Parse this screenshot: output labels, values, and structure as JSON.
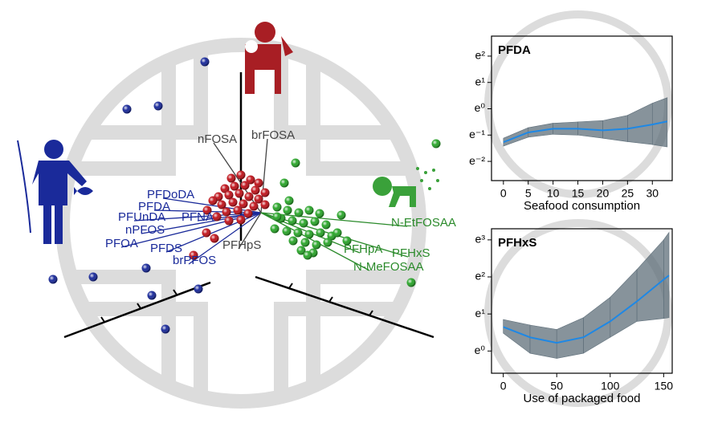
{
  "chart_data": [
    {
      "type": "scatter",
      "xlim": [
        0,
        560
      ],
      "ylim": [
        510,
        0
      ],
      "series": [
        {
          "name": null,
          "color": "#1a2a9a",
          "x": [
            255,
            158,
            197,
            66,
            116,
            189,
            247,
            206,
            182
          ],
          "y": [
            77,
            136,
            132,
            348,
            345,
            368,
            360,
            410,
            334
          ]
        },
        {
          "name": null,
          "color": "#c0141c",
          "x": [
            288,
            300,
            312,
            322,
            280,
            292,
            305,
            318,
            330,
            272,
            285,
            298,
            310,
            322,
            276,
            290,
            303,
            316,
            330,
            282,
            296,
            309,
            270,
            258,
            285,
            300,
            257,
            241,
            267,
            265
          ],
          "y": [
            222,
            218,
            224,
            228,
            235,
            232,
            231,
            237,
            240,
            245,
            243,
            241,
            245,
            248,
            255,
            252,
            254,
            257,
            255,
            264,
            262,
            266,
            270,
            262,
            275,
            274,
            290,
            318,
            297,
            250
          ]
        },
        {
          "name": null,
          "color": "#2aa52a",
          "x": [
            543,
            368,
            354,
            345,
            358,
            372,
            385,
            398,
            350,
            364,
            378,
            392,
            406,
            342,
            357,
            371,
            385,
            399,
            413,
            365,
            380,
            394,
            408,
            375,
            390,
            383,
            425,
            420,
            432,
            512,
            345,
            360
          ],
          "y": [
            179,
            203,
            228,
            258,
            262,
            265,
            262,
            266,
            272,
            275,
            278,
            276,
            280,
            285,
            288,
            290,
            292,
            290,
            294,
            300,
            302,
            305,
            302,
            312,
            315,
            318,
            268,
            290,
            300,
            352,
            270,
            250
          ]
        }
      ],
      "annotations": [
        {
          "text": "PFDoDA",
          "color": "#1a2a9a",
          "x": 183,
          "y": 243
        },
        {
          "text": "PFDA",
          "color": "#1a2a9a",
          "x": 172,
          "y": 258
        },
        {
          "text": "PFUnDA",
          "color": "#1a2a9a",
          "x": 147,
          "y": 271
        },
        {
          "text": "PFNA",
          "color": "#1a2a9a",
          "x": 226,
          "y": 271
        },
        {
          "text": "nPFOS",
          "color": "#1a2a9a",
          "x": 156,
          "y": 287
        },
        {
          "text": "PFOA",
          "color": "#1a2a9a",
          "x": 131,
          "y": 304
        },
        {
          "text": "PFDS",
          "color": "#1a2a9a",
          "x": 187,
          "y": 310
        },
        {
          "text": "brPFOS",
          "color": "#1a2a9a",
          "x": 215,
          "y": 325
        },
        {
          "text": "PFHpS",
          "color": "#444444",
          "x": 277,
          "y": 306
        },
        {
          "text": "nFOSA",
          "color": "#444444",
          "x": 246,
          "y": 174
        },
        {
          "text": "brFOSA",
          "color": "#444444",
          "x": 313,
          "y": 169
        },
        {
          "text": "N-EtFOSAA",
          "color": "#2a8a2a",
          "x": 487,
          "y": 278
        },
        {
          "text": "PFHpA",
          "color": "#2a8a2a",
          "x": 428,
          "y": 311
        },
        {
          "text": "PFHxS",
          "color": "#2a8a2a",
          "x": 488,
          "y": 316
        },
        {
          "text": "N-MeFOSAA",
          "color": "#2a8a2a",
          "x": 440,
          "y": 333
        }
      ]
    },
    {
      "type": "line",
      "title": "PFDA",
      "x_label": "Seafood consumption",
      "xlim": [
        -2.4,
        34
      ],
      "xticks": [
        0,
        5,
        10,
        15,
        20,
        25,
        30
      ],
      "ylim": [
        -2.73,
        2.76
      ],
      "yticks": [
        {
          "value": 2,
          "label": "e²"
        },
        {
          "value": 1,
          "label": "e¹"
        },
        {
          "value": 0,
          "label": "e⁰"
        },
        {
          "value": -1,
          "label": "e⁻¹"
        },
        {
          "value": -2,
          "label": "e⁻²"
        }
      ],
      "line_color": "#1e88e5",
      "band_color": "#5f6f7a",
      "x": [
        0,
        5,
        10,
        15,
        20,
        25,
        30,
        33
      ],
      "values": [
        -1.27,
        -0.9,
        -0.76,
        -0.76,
        -0.82,
        -0.76,
        -0.6,
        -0.48
      ],
      "upper": [
        -1.12,
        -0.72,
        -0.55,
        -0.5,
        -0.45,
        -0.25,
        0.21,
        0.42
      ],
      "lower": [
        -1.42,
        -1.08,
        -0.97,
        -1.0,
        -1.12,
        -1.25,
        -1.36,
        -1.45
      ]
    },
    {
      "type": "line",
      "title": "PFHxS",
      "x_label": "Use of packaged food",
      "xlim": [
        -11,
        158
      ],
      "xticks": [
        0,
        50,
        100,
        150
      ],
      "ylim": [
        -0.6,
        3.3
      ],
      "yticks": [
        {
          "value": 3,
          "label": "e³"
        },
        {
          "value": 2,
          "label": "e²"
        },
        {
          "value": 1,
          "label": "e¹"
        },
        {
          "value": 0,
          "label": "e⁰"
        }
      ],
      "line_color": "#1e88e5",
      "band_color": "#5f6f7a",
      "x": [
        0,
        25,
        50,
        75,
        100,
        125,
        150,
        155
      ],
      "values": [
        0.65,
        0.37,
        0.22,
        0.37,
        0.8,
        1.34,
        1.93,
        2.04
      ],
      "upper": [
        0.85,
        0.7,
        0.58,
        0.9,
        1.45,
        2.2,
        3.0,
        3.2
      ],
      "lower": [
        0.48,
        -0.06,
        -0.2,
        -0.06,
        0.37,
        0.8,
        0.88,
        0.9
      ]
    }
  ]
}
